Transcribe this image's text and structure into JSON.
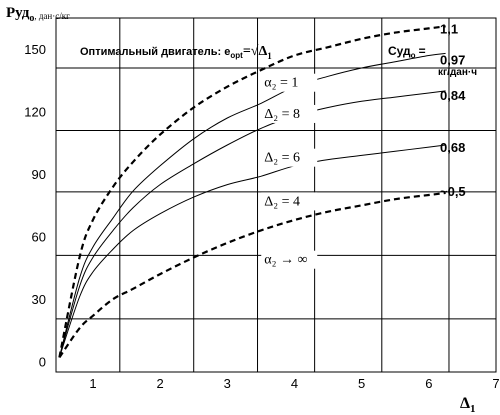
{
  "chart_data": {
    "type": "line",
    "ylabel": "Руд",
    "ylabel_sub": "о",
    "ylabel_unit": ", дан·с/кг",
    "xlabel": "Δ",
    "xlabel_sub": "1",
    "annotation_opt_text": "Оптимальный двигатель: e",
    "annotation_opt_sub": "opt",
    "annotation_opt_eq": "=√Δ",
    "annotation_opt_eq_sub": "1",
    "annotation_cud": "Суд",
    "annotation_cud_sub": "о",
    "annotation_cud_eq": "=",
    "annotation_cud_unit": "кг/дан·ч",
    "xlim": [
      0.45,
      7
    ],
    "ylim": [
      -5,
      165
    ],
    "x_ticks": [
      1,
      2,
      3,
      4,
      5,
      6,
      7
    ],
    "y_ticks": [
      0,
      30,
      60,
      90,
      120,
      150
    ],
    "grid_x": [
      0.45,
      1.4,
      2.5,
      3.45,
      4.3,
      5.3,
      6.3
    ],
    "grid_y": [
      20.5,
      51,
      81.5,
      111,
      141
    ],
    "grid": true,
    "series": [
      {
        "name": "α₂ = 1",
        "style": "dashed",
        "label_x": 3.55,
        "label_y": 132,
        "x": [
          0.5,
          0.8,
          1.0,
          1.3,
          1.6,
          2.0,
          2.5,
          3.0,
          3.5,
          4.0,
          4.5,
          5.0,
          5.5,
          6.0,
          6.25
        ],
        "y": [
          2,
          50,
          68,
          84,
          96,
          109,
          122,
          132,
          140,
          147,
          151,
          155,
          158,
          160,
          161
        ]
      },
      {
        "name": "Δ₂ = 8",
        "style": "solid",
        "label_x": 3.55,
        "label_y": 117,
        "x": [
          0.5,
          0.8,
          1.0,
          1.3,
          1.6,
          2.0,
          2.5,
          3.0,
          3.5,
          4.0,
          4.5,
          5.0,
          5.5,
          6.0,
          6.25
        ],
        "y": [
          2,
          40,
          55,
          69,
          82,
          94,
          107,
          117,
          124,
          132,
          137,
          141,
          144,
          147,
          148
        ]
      },
      {
        "name": "Δ₂ = 6",
        "style": "solid",
        "label_x": 3.55,
        "label_y": 96,
        "x": [
          0.5,
          0.8,
          1.0,
          1.3,
          1.6,
          2.0,
          2.5,
          3.0,
          3.5,
          4.0,
          4.5,
          5.0,
          5.5,
          6.0,
          6.25
        ],
        "y": [
          2,
          36,
          50,
          63,
          74,
          85,
          95,
          104,
          112,
          118,
          122,
          125,
          127,
          129,
          130
        ]
      },
      {
        "name": "Δ₂ = 4",
        "style": "solid",
        "label_x": 3.55,
        "label_y": 75,
        "x": [
          0.5,
          0.8,
          1.0,
          1.3,
          1.6,
          2.0,
          2.5,
          3.0,
          3.5,
          4.0,
          4.5,
          5.0,
          5.5,
          6.0,
          6.25
        ],
        "y": [
          2,
          31,
          43,
          54,
          63,
          71,
          79,
          85,
          89,
          94,
          97,
          99,
          101,
          103,
          104
        ]
      },
      {
        "name": "α₂ → ∞",
        "style": "dashed",
        "label_x": 3.55,
        "label_y": 47,
        "x": [
          0.5,
          0.8,
          1.0,
          1.3,
          1.6,
          2.0,
          2.5,
          3.0,
          3.5,
          4.0,
          4.5,
          5.0,
          5.5,
          6.0,
          6.25
        ],
        "y": [
          2,
          16,
          22,
          30,
          35,
          42,
          50,
          57,
          63,
          68,
          72,
          75,
          78,
          80,
          81
        ]
      }
    ],
    "end_labels": [
      {
        "text": "1,1",
        "y": 160
      },
      {
        "text": "0,97",
        "y": 145
      },
      {
        "text": "0,84",
        "y": 128
      },
      {
        "text": "0,68",
        "y": 103
      },
      {
        "text": "~0,5",
        "y": 82
      }
    ]
  }
}
